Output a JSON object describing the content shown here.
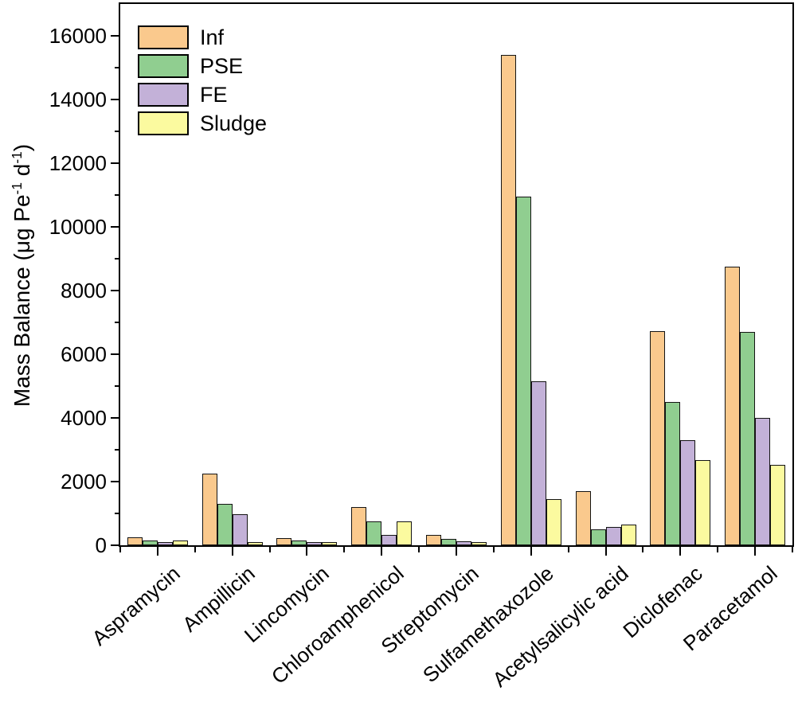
{
  "chart_data": {
    "type": "bar",
    "title": "",
    "ylabel": "Mass Balance (μg Pe⁻¹ d⁻¹)",
    "ylabel_segments": [
      {
        "t": "Mass Balance (μg Pe"
      },
      {
        "t": "-1",
        "sup": true
      },
      {
        "t": " d"
      },
      {
        "t": "-1",
        "sup": true
      },
      {
        "t": ")"
      }
    ],
    "xlabel": "",
    "ylim": [
      0,
      17000
    ],
    "ytick_major_step": 2000,
    "ytick_minor_step": 1000,
    "ytick_labels": [
      "0",
      "2000",
      "4000",
      "6000",
      "8000",
      "10000",
      "12000",
      "14000",
      "16000"
    ],
    "grid": false,
    "legend_position": "top-left-inside",
    "axis_color": "#000000",
    "bar_border_color": "#141414",
    "categories": [
      "Aspramycin",
      "Ampillicin",
      "Lincomycin",
      "Chloroamphenicol",
      "Streptomycin",
      "Sulfamethaxozole",
      "Acetylsalicylic acid",
      "Diclofenac",
      "Paracetamol"
    ],
    "series": [
      {
        "name": "Inf",
        "color": "#FAC98D",
        "values": [
          200,
          2200,
          170,
          1150,
          270,
          15350,
          1660,
          6680,
          8700
        ]
      },
      {
        "name": "PSE",
        "color": "#90CE90",
        "values": [
          110,
          1250,
          110,
          710,
          140,
          10900,
          460,
          4450,
          6660
        ]
      },
      {
        "name": "FE",
        "color": "#C3B1D8",
        "values": [
          60,
          930,
          60,
          280,
          80,
          5090,
          530,
          3260,
          3950
        ]
      },
      {
        "name": "Sludge",
        "color": "#FBFA9F",
        "values": [
          90,
          60,
          40,
          700,
          40,
          1390,
          590,
          2630,
          2470
        ]
      }
    ]
  }
}
